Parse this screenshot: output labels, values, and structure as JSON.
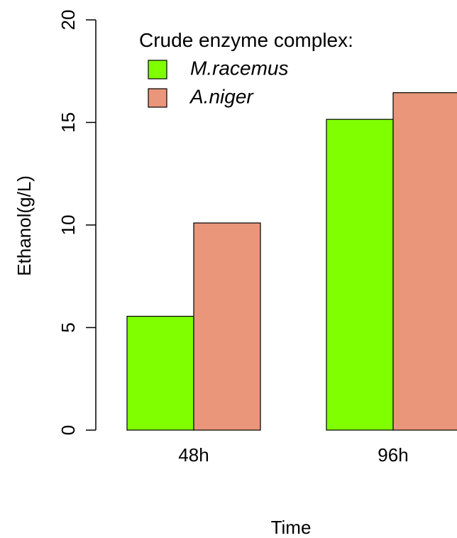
{
  "chart_data": {
    "type": "bar",
    "title": "",
    "xlabel": "Time",
    "ylabel": "Ethanol(g/L)",
    "categories": [
      "48h",
      "96h"
    ],
    "series": [
      {
        "name": "M.racemus",
        "values": [
          5.55,
          15.15
        ],
        "color": "#7FFF00"
      },
      {
        "name": "A.niger",
        "values": [
          10.1,
          16.45
        ],
        "color": "#E9967A"
      }
    ],
    "ylim": [
      0,
      20
    ],
    "yticks": [
      0,
      5,
      10,
      15,
      20
    ],
    "grid": false,
    "legend": {
      "title": "Crude enzyme complex:",
      "placement": "top-left"
    }
  }
}
